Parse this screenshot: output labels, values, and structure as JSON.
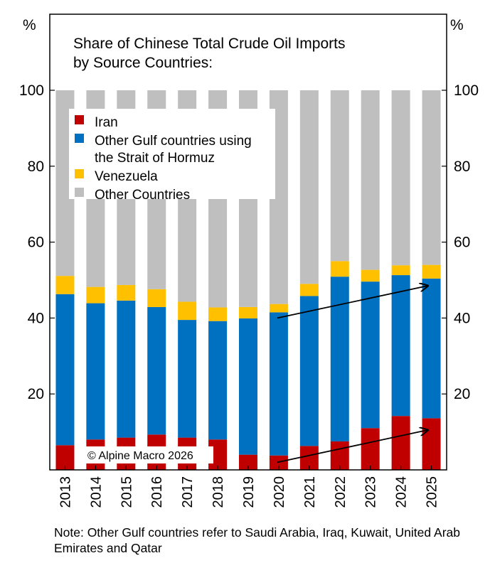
{
  "chart_data": {
    "type": "bar",
    "stacked": true,
    "title": "Share of Chinese Total Crude Oil Imports by Source Countries:",
    "title_lines": [
      "Share of Chinese Total Crude Oil Imports",
      "by Source Countries:"
    ],
    "ylabel_left": "%",
    "ylabel_right": "%",
    "ylim": [
      0,
      100
    ],
    "yticks": [
      20,
      40,
      60,
      80,
      100
    ],
    "grid": false,
    "legend_position": "top-left",
    "categories": [
      "2013",
      "2014",
      "2015",
      "2016",
      "2017",
      "2018",
      "2019",
      "2020",
      "2021",
      "2022",
      "2023",
      "2024",
      "2025"
    ],
    "series": [
      {
        "name": "Iran",
        "legend_lines": [
          "Iran"
        ],
        "color": "#c00000",
        "values": [
          6.5,
          8,
          8.5,
          9.3,
          8.5,
          8,
          4,
          3.8,
          6.3,
          7.5,
          11,
          14.2,
          13.6
        ]
      },
      {
        "name": "Other Gulf countries using the Strait of Hormuz",
        "legend_lines": [
          "Other Gulf countries using",
          "the Strait of Hormuz"
        ],
        "color": "#0070c0",
        "values": [
          39.8,
          35.9,
          36.1,
          33.6,
          31,
          31.2,
          35.9,
          37.7,
          39.5,
          43.4,
          38.6,
          37.1,
          36.8
        ]
      },
      {
        "name": "Venezuela",
        "legend_lines": [
          "Venezuela"
        ],
        "color": "#ffc000",
        "values": [
          4.8,
          4.3,
          4.1,
          4.7,
          4.8,
          3.6,
          3,
          2.2,
          3.2,
          4.1,
          3.1,
          2.6,
          3.6
        ]
      },
      {
        "name": "Other Countries",
        "legend_lines": [
          "Other Countries"
        ],
        "color": "#bfbfbf",
        "values": [
          48.9,
          51.8,
          51.3,
          52.4,
          55.7,
          57.2,
          57.1,
          56.3,
          51,
          45,
          47.3,
          46.1,
          46
        ]
      }
    ],
    "annotations": {
      "copyright": "© Alpine Macro 2026",
      "arrows": [
        {
          "from": {
            "x": "2020",
            "y": 40
          },
          "to": {
            "x": "2025",
            "y": 48.5
          }
        },
        {
          "from": {
            "x": "2020",
            "y": 2
          },
          "to": {
            "x": "2025",
            "y": 10.5
          }
        }
      ]
    },
    "note": "Note: Other Gulf countries refer to Saudi Arabia, Iraq, Kuwait, United Arab Emirates and Qatar"
  }
}
